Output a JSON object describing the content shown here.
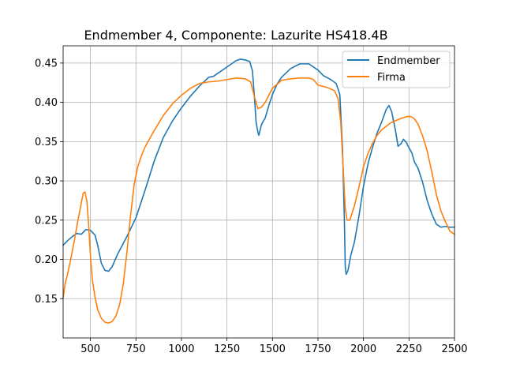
{
  "chart_data": {
    "type": "line",
    "title": "Endmember 4, Componente: Lazurite HS418.4B",
    "xlabel": "",
    "ylabel": "",
    "xlim": [
      350,
      2500
    ],
    "ylim": [
      0.1,
      0.472
    ],
    "xticks": [
      500,
      750,
      1000,
      1250,
      1500,
      1750,
      2000,
      2250,
      2500
    ],
    "yticks": [
      0.15,
      0.2,
      0.25,
      0.3,
      0.35,
      0.4,
      0.45
    ],
    "grid": true,
    "legend_position": "top-right",
    "series": [
      {
        "name": "Endmember",
        "color": "#1f77b4",
        "points": [
          [
            350,
            0.218
          ],
          [
            375,
            0.224
          ],
          [
            400,
            0.229
          ],
          [
            425,
            0.233
          ],
          [
            450,
            0.232
          ],
          [
            475,
            0.238
          ],
          [
            500,
            0.237
          ],
          [
            525,
            0.231
          ],
          [
            540,
            0.218
          ],
          [
            560,
            0.195
          ],
          [
            580,
            0.186
          ],
          [
            600,
            0.185
          ],
          [
            620,
            0.191
          ],
          [
            650,
            0.207
          ],
          [
            700,
            0.229
          ],
          [
            750,
            0.253
          ],
          [
            800,
            0.288
          ],
          [
            850,
            0.325
          ],
          [
            900,
            0.355
          ],
          [
            950,
            0.376
          ],
          [
            1000,
            0.393
          ],
          [
            1050,
            0.408
          ],
          [
            1100,
            0.421
          ],
          [
            1150,
            0.432
          ],
          [
            1175,
            0.433
          ],
          [
            1200,
            0.437
          ],
          [
            1250,
            0.445
          ],
          [
            1300,
            0.453
          ],
          [
            1325,
            0.455
          ],
          [
            1350,
            0.454
          ],
          [
            1375,
            0.452
          ],
          [
            1390,
            0.44
          ],
          [
            1400,
            0.41
          ],
          [
            1410,
            0.375
          ],
          [
            1420,
            0.362
          ],
          [
            1425,
            0.358
          ],
          [
            1440,
            0.372
          ],
          [
            1460,
            0.38
          ],
          [
            1480,
            0.396
          ],
          [
            1500,
            0.41
          ],
          [
            1525,
            0.423
          ],
          [
            1550,
            0.432
          ],
          [
            1600,
            0.443
          ],
          [
            1650,
            0.449
          ],
          [
            1700,
            0.449
          ],
          [
            1750,
            0.441
          ],
          [
            1780,
            0.434
          ],
          [
            1820,
            0.429
          ],
          [
            1850,
            0.424
          ],
          [
            1870,
            0.41
          ],
          [
            1885,
            0.34
          ],
          [
            1895,
            0.25
          ],
          [
            1900,
            0.19
          ],
          [
            1905,
            0.181
          ],
          [
            1915,
            0.186
          ],
          [
            1930,
            0.205
          ],
          [
            1950,
            0.222
          ],
          [
            1975,
            0.255
          ],
          [
            2000,
            0.293
          ],
          [
            2025,
            0.322
          ],
          [
            2050,
            0.343
          ],
          [
            2075,
            0.361
          ],
          [
            2100,
            0.375
          ],
          [
            2125,
            0.391
          ],
          [
            2140,
            0.396
          ],
          [
            2155,
            0.388
          ],
          [
            2175,
            0.365
          ],
          [
            2190,
            0.344
          ],
          [
            2205,
            0.347
          ],
          [
            2220,
            0.353
          ],
          [
            2235,
            0.349
          ],
          [
            2250,
            0.342
          ],
          [
            2265,
            0.336
          ],
          [
            2280,
            0.324
          ],
          [
            2300,
            0.316
          ],
          [
            2325,
            0.298
          ],
          [
            2350,
            0.275
          ],
          [
            2375,
            0.258
          ],
          [
            2400,
            0.245
          ],
          [
            2425,
            0.241
          ],
          [
            2450,
            0.242
          ],
          [
            2475,
            0.241
          ],
          [
            2500,
            0.241
          ]
        ]
      },
      {
        "name": "Firma",
        "color": "#ff7f0e",
        "points": [
          [
            350,
            0.151
          ],
          [
            360,
            0.168
          ],
          [
            375,
            0.182
          ],
          [
            390,
            0.198
          ],
          [
            410,
            0.222
          ],
          [
            430,
            0.248
          ],
          [
            450,
            0.272
          ],
          [
            460,
            0.284
          ],
          [
            470,
            0.286
          ],
          [
            480,
            0.275
          ],
          [
            490,
            0.245
          ],
          [
            500,
            0.205
          ],
          [
            510,
            0.175
          ],
          [
            525,
            0.152
          ],
          [
            540,
            0.136
          ],
          [
            560,
            0.125
          ],
          [
            580,
            0.12
          ],
          [
            600,
            0.119
          ],
          [
            620,
            0.121
          ],
          [
            640,
            0.128
          ],
          [
            660,
            0.142
          ],
          [
            680,
            0.168
          ],
          [
            700,
            0.208
          ],
          [
            720,
            0.255
          ],
          [
            740,
            0.295
          ],
          [
            760,
            0.318
          ],
          [
            780,
            0.332
          ],
          [
            800,
            0.343
          ],
          [
            850,
            0.364
          ],
          [
            900,
            0.383
          ],
          [
            950,
            0.398
          ],
          [
            1000,
            0.409
          ],
          [
            1050,
            0.418
          ],
          [
            1100,
            0.424
          ],
          [
            1150,
            0.426
          ],
          [
            1200,
            0.427
          ],
          [
            1250,
            0.429
          ],
          [
            1300,
            0.431
          ],
          [
            1350,
            0.43
          ],
          [
            1380,
            0.426
          ],
          [
            1400,
            0.408
          ],
          [
            1420,
            0.392
          ],
          [
            1440,
            0.394
          ],
          [
            1460,
            0.4
          ],
          [
            1480,
            0.409
          ],
          [
            1500,
            0.418
          ],
          [
            1550,
            0.428
          ],
          [
            1600,
            0.43
          ],
          [
            1650,
            0.431
          ],
          [
            1700,
            0.431
          ],
          [
            1725,
            0.429
          ],
          [
            1750,
            0.422
          ],
          [
            1800,
            0.419
          ],
          [
            1840,
            0.415
          ],
          [
            1860,
            0.405
          ],
          [
            1875,
            0.375
          ],
          [
            1890,
            0.31
          ],
          [
            1900,
            0.265
          ],
          [
            1910,
            0.25
          ],
          [
            1925,
            0.25
          ],
          [
            1950,
            0.268
          ],
          [
            1975,
            0.292
          ],
          [
            2000,
            0.318
          ],
          [
            2025,
            0.335
          ],
          [
            2050,
            0.348
          ],
          [
            2075,
            0.358
          ],
          [
            2100,
            0.365
          ],
          [
            2150,
            0.374
          ],
          [
            2200,
            0.379
          ],
          [
            2240,
            0.382
          ],
          [
            2260,
            0.382
          ],
          [
            2280,
            0.379
          ],
          [
            2300,
            0.372
          ],
          [
            2325,
            0.357
          ],
          [
            2350,
            0.338
          ],
          [
            2375,
            0.312
          ],
          [
            2400,
            0.283
          ],
          [
            2425,
            0.262
          ],
          [
            2450,
            0.248
          ],
          [
            2475,
            0.236
          ],
          [
            2500,
            0.232
          ]
        ]
      }
    ]
  }
}
